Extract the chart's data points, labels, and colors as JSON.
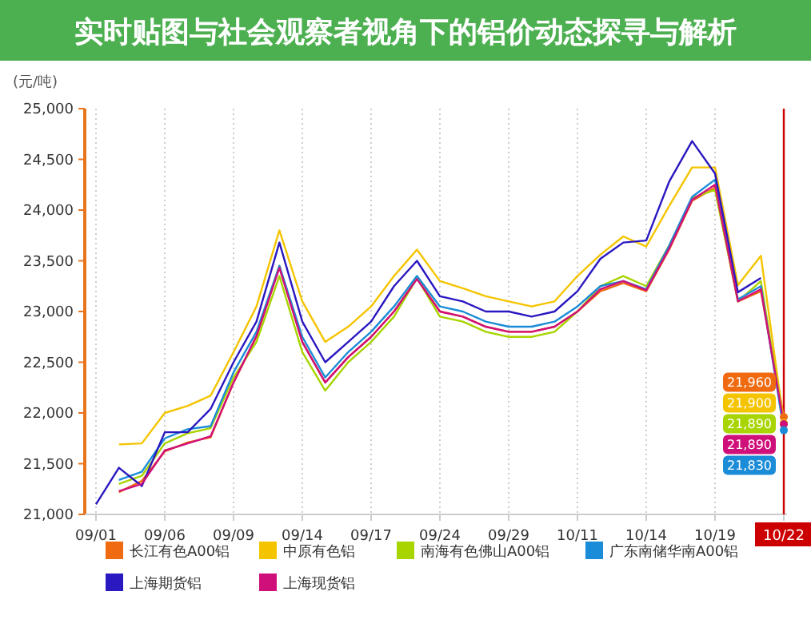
{
  "chart_data": {
    "type": "line",
    "title": "实时贴图与社会观察者视角下的铝价动态探寻与解析",
    "ylabel": "(元/吨)",
    "categories": [
      "09/01",
      null,
      null,
      "09/06",
      null,
      null,
      "09/09",
      null,
      null,
      "09/14",
      null,
      null,
      "09/17",
      null,
      null,
      "09/24",
      null,
      null,
      "09/29",
      null,
      null,
      "10/11",
      null,
      null,
      "10/14",
      null,
      null,
      "10/19",
      null,
      null,
      "10/22"
    ],
    "series": [
      {
        "name": "长江有色A00铝",
        "color": "#f06a10",
        "values": [
          null,
          21220,
          21330,
          21620,
          21710,
          21760,
          22300,
          22750,
          23450,
          22700,
          22300,
          22550,
          22750,
          23000,
          23330,
          23000,
          22950,
          22850,
          22800,
          22800,
          22850,
          23000,
          23200,
          23280,
          23200,
          23610,
          24090,
          24220,
          23100,
          23200,
          21960
        ],
        "value_labels": [
          null,
          null,
          null,
          null,
          null,
          null,
          null,
          null,
          null,
          null,
          null,
          null,
          null,
          null,
          null,
          null,
          null,
          null,
          null,
          null,
          null,
          null,
          null,
          null,
          null,
          null,
          null,
          null,
          null,
          null,
          "21,960"
        ]
      },
      {
        "name": "中原有色铝",
        "color": "#f5c400",
        "values": [
          null,
          21690,
          21700,
          22000,
          22070,
          22170,
          22600,
          23050,
          23800,
          23100,
          22700,
          22850,
          23050,
          23350,
          23610,
          23300,
          23230,
          23150,
          23100,
          23050,
          23100,
          23350,
          23560,
          23740,
          23640,
          24040,
          24420,
          24420,
          23260,
          23550,
          21900
        ],
        "value_labels": [
          null,
          null,
          null,
          null,
          null,
          null,
          null,
          null,
          null,
          null,
          null,
          null,
          null,
          null,
          null,
          null,
          null,
          null,
          null,
          null,
          null,
          null,
          null,
          null,
          null,
          null,
          null,
          null,
          null,
          null,
          "21,900"
        ]
      },
      {
        "name": "南海有色佛山A00铝",
        "color": "#a8d400",
        "values": [
          null,
          21300,
          21380,
          21700,
          21800,
          21850,
          22350,
          22700,
          23350,
          22600,
          22220,
          22500,
          22700,
          22950,
          23330,
          22950,
          22900,
          22800,
          22750,
          22750,
          22800,
          23000,
          23250,
          23350,
          23250,
          23650,
          24120,
          24200,
          23100,
          23300,
          21890
        ],
        "value_labels": [
          null,
          null,
          null,
          null,
          null,
          null,
          null,
          null,
          null,
          null,
          null,
          null,
          null,
          null,
          null,
          null,
          null,
          null,
          null,
          null,
          null,
          null,
          null,
          null,
          null,
          null,
          null,
          null,
          null,
          null,
          "21,890"
        ]
      },
      {
        "name": "广东南储华南A00铝",
        "color": "#1a8cd8",
        "values": [
          null,
          21340,
          21420,
          21750,
          21840,
          21870,
          22400,
          22800,
          23450,
          22750,
          22350,
          22600,
          22800,
          23050,
          23350,
          23050,
          23000,
          22900,
          22850,
          22850,
          22900,
          23050,
          23250,
          23300,
          23220,
          23650,
          24130,
          24300,
          23120,
          23250,
          21830
        ],
        "value_labels": [
          null,
          null,
          null,
          null,
          null,
          null,
          null,
          null,
          null,
          null,
          null,
          null,
          null,
          null,
          null,
          null,
          null,
          null,
          null,
          null,
          null,
          null,
          null,
          null,
          null,
          null,
          null,
          null,
          null,
          null,
          "21,830"
        ]
      },
      {
        "name": "上海期货铝",
        "color": "#2a18c0",
        "values": [
          21100,
          21460,
          21280,
          21810,
          21810,
          22040,
          22500,
          22900,
          23680,
          22900,
          22500,
          22700,
          22900,
          23250,
          23500,
          23150,
          23100,
          23000,
          23000,
          22950,
          23000,
          23200,
          23520,
          23680,
          23700,
          24280,
          24680,
          24360,
          23190,
          23330,
          null
        ]
      },
      {
        "name": "上海现货铝",
        "color": "#d0107a",
        "values": [
          null,
          21230,
          21300,
          21630,
          21700,
          21770,
          22300,
          22760,
          23430,
          22700,
          22300,
          22550,
          22750,
          23000,
          23320,
          23000,
          22950,
          22850,
          22800,
          22800,
          22850,
          23000,
          23220,
          23300,
          23210,
          23620,
          24100,
          24250,
          23100,
          23220,
          21890
        ],
        "value_labels": [
          null,
          null,
          null,
          null,
          null,
          null,
          null,
          null,
          null,
          null,
          null,
          null,
          null,
          null,
          null,
          null,
          null,
          null,
          null,
          null,
          null,
          null,
          null,
          null,
          null,
          null,
          null,
          null,
          null,
          null,
          "21,890"
        ]
      }
    ],
    "ylim": [
      21000,
      25000
    ],
    "yticks": [
      {
        "value": 21000,
        "label": "21,000"
      },
      {
        "value": 21500,
        "label": "21,500"
      },
      {
        "value": 22000,
        "label": "22,000"
      },
      {
        "value": 22500,
        "label": "22,500"
      },
      {
        "value": 23000,
        "label": "23,000"
      },
      {
        "value": 23500,
        "label": "23,500"
      },
      {
        "value": 24000,
        "label": "24,000"
      },
      {
        "value": 24500,
        "label": "24,500"
      },
      {
        "value": 25000,
        "label": "25,000"
      }
    ],
    "grid": "x",
    "legend": "bottom",
    "ref_lines": [
      {
        "axis": "x",
        "value": "10/22",
        "color": "#cc0000"
      }
    ]
  }
}
